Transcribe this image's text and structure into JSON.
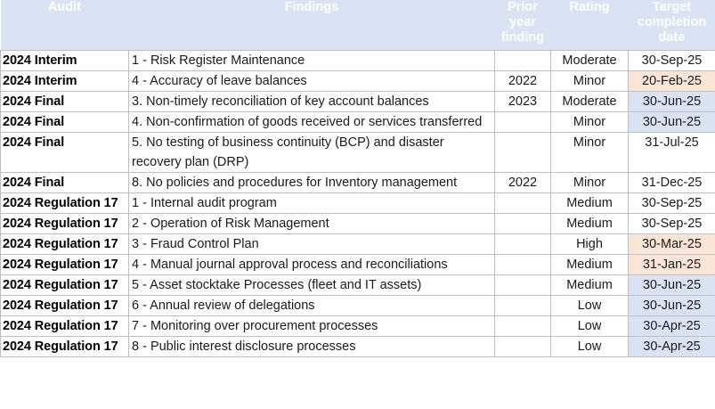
{
  "headers": {
    "audit": "Audit",
    "findings": "Findings",
    "prior": [
      "Prior",
      "year",
      "finding"
    ],
    "rating": "Rating",
    "target": [
      "Target",
      "completion",
      "date"
    ]
  },
  "colors": {
    "header_bg": "#dae3f3",
    "blue": "#dae3f3",
    "peach": "#fbe5d6"
  },
  "rows": [
    {
      "audit": "2024 Interim",
      "finding": "1 - Risk Register Maintenance",
      "prior": "",
      "rating": "Moderate",
      "target": "30-Sep-25",
      "highlight": "none"
    },
    {
      "audit": "2024 Interim",
      "finding": "4 - Accuracy of leave balances",
      "prior": "2022",
      "rating": "Minor",
      "target": "20-Feb-25",
      "highlight": "peach"
    },
    {
      "audit": "2024 Final",
      "finding": "3. Non-timely reconciliation of key account balances",
      "prior": "2023",
      "rating": "Moderate",
      "target": "30-Jun-25",
      "highlight": "blue"
    },
    {
      "audit": "2024 Final",
      "finding": "4. Non-confirmation of goods received or services transferred",
      "prior": "",
      "rating": "Minor",
      "target": "30-Jun-25",
      "highlight": "blue"
    },
    {
      "audit": "2024 Final",
      "finding": "5. No testing of business continuity (BCP) and disaster recovery plan (DRP)",
      "prior": "",
      "rating": "Minor",
      "target": "31-Jul-25",
      "highlight": "none"
    },
    {
      "audit": "2024 Final",
      "finding": "8. No policies and procedures for Inventory management",
      "prior": "2022",
      "rating": "Minor",
      "target": "31-Dec-25",
      "highlight": "none"
    },
    {
      "audit": "2024 Regulation 17",
      "finding": "1 - Internal audit program",
      "prior": "",
      "rating": "Medium",
      "target": "30-Sep-25",
      "highlight": "none"
    },
    {
      "audit": "2024 Regulation 17",
      "finding": "2 - Operation of Risk Management",
      "prior": "",
      "rating": "Medium",
      "target": "30-Sep-25",
      "highlight": "none"
    },
    {
      "audit": "2024 Regulation 17",
      "finding": "3 - Fraud Control Plan",
      "prior": "",
      "rating": "High",
      "target": "30-Mar-25",
      "highlight": "peach"
    },
    {
      "audit": "2024 Regulation 17",
      "finding": "4 - Manual journal approval process and reconciliations",
      "prior": "",
      "rating": "Medium",
      "target": "31-Jan-25",
      "highlight": "peach"
    },
    {
      "audit": "2024 Regulation 17",
      "finding": "5 - Asset stocktake Processes (fleet and IT assets)",
      "prior": "",
      "rating": "Medium",
      "target": "30-Jun-25",
      "highlight": "blue"
    },
    {
      "audit": "2024 Regulation 17",
      "finding": "6 - Annual review of delegations",
      "prior": "",
      "rating": "Low",
      "target": "30-Jun-25",
      "highlight": "blue"
    },
    {
      "audit": "2024 Regulation 17",
      "finding": "7 - Monitoring over procurement processes",
      "prior": "",
      "rating": "Low",
      "target": "30-Apr-25",
      "highlight": "blue"
    },
    {
      "audit": "2024 Regulation 17",
      "finding": "8 - Public interest disclosure processes",
      "prior": "",
      "rating": "Low",
      "target": "30-Apr-25",
      "highlight": "blue"
    }
  ]
}
